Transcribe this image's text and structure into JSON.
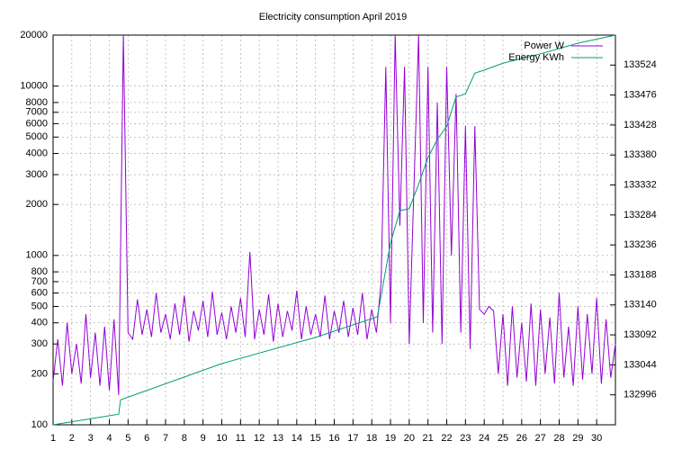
{
  "chart_data": {
    "type": "line",
    "title": "Electricity consumption April 2019",
    "log_y": true,
    "grid": true,
    "legend": "top-right",
    "xlim": [
      1,
      31
    ],
    "xticks": [
      1,
      2,
      3,
      4,
      5,
      6,
      7,
      8,
      9,
      10,
      11,
      12,
      13,
      14,
      15,
      16,
      17,
      18,
      19,
      20,
      21,
      22,
      23,
      24,
      25,
      26,
      27,
      28,
      29,
      30
    ],
    "ylim": [
      100,
      20000
    ],
    "yticks": [
      100,
      200,
      300,
      400,
      500,
      600,
      700,
      800,
      1000,
      2000,
      3000,
      4000,
      5000,
      6000,
      7000,
      8000,
      10000,
      20000
    ],
    "y2lim": [
      132948,
      133572
    ],
    "y2ticks": [
      132996,
      133044,
      133092,
      133140,
      133188,
      133236,
      133284,
      133332,
      133380,
      133428,
      133476,
      133524
    ],
    "series": [
      {
        "name": "Power W",
        "color": "#9400d3",
        "x": [
          1,
          1.25,
          1.5,
          1.75,
          2,
          2.25,
          2.5,
          2.75,
          3,
          3.25,
          3.5,
          3.75,
          4,
          4.25,
          4.5,
          4.75,
          5,
          5.25,
          5.5,
          5.75,
          6,
          6.25,
          6.5,
          6.75,
          7,
          7.25,
          7.5,
          7.75,
          8,
          8.25,
          8.5,
          8.75,
          9,
          9.25,
          9.5,
          9.75,
          10,
          10.25,
          10.5,
          10.75,
          11,
          11.25,
          11.5,
          11.75,
          12,
          12.25,
          12.5,
          12.75,
          13,
          13.25,
          13.5,
          13.75,
          14,
          14.25,
          14.5,
          14.75,
          15,
          15.25,
          15.5,
          15.75,
          16,
          16.25,
          16.5,
          16.75,
          17,
          17.25,
          17.5,
          17.75,
          18,
          18.25,
          18.5,
          18.75,
          19,
          19.25,
          19.5,
          19.75,
          20,
          20.25,
          20.5,
          20.75,
          21,
          21.25,
          21.5,
          21.75,
          22,
          22.25,
          22.5,
          22.75,
          23,
          23.25,
          23.5,
          23.75,
          24,
          24.25,
          24.5,
          24.75,
          25,
          25.25,
          25.5,
          25.75,
          26,
          26.25,
          26.5,
          26.75,
          27,
          27.25,
          27.5,
          27.75,
          28,
          28.25,
          28.5,
          28.75,
          29,
          29.25,
          29.5,
          29.75,
          30,
          30.25,
          30.5,
          30.75,
          31
        ],
        "values": [
          180,
          320,
          170,
          400,
          200,
          300,
          175,
          450,
          190,
          350,
          170,
          380,
          160,
          420,
          150,
          20000,
          350,
          320,
          550,
          340,
          480,
          330,
          600,
          350,
          450,
          320,
          520,
          340,
          580,
          310,
          470,
          360,
          540,
          330,
          610,
          340,
          460,
          320,
          500,
          350,
          560,
          330,
          1050,
          320,
          480,
          340,
          590,
          310,
          520,
          330,
          470,
          360,
          620,
          320,
          500,
          340,
          450,
          330,
          580,
          320,
          470,
          350,
          540,
          330,
          490,
          340,
          600,
          320,
          480,
          350,
          700,
          13000,
          400,
          20000,
          1500,
          13000,
          300,
          2500,
          20000,
          400,
          13000,
          350,
          8000,
          300,
          13000,
          1000,
          9000,
          350,
          5800,
          280,
          5800,
          480,
          450,
          500,
          470,
          200,
          450,
          170,
          500,
          190,
          400,
          180,
          520,
          170,
          480,
          200,
          430,
          175,
          600,
          190,
          380,
          170,
          500,
          185,
          450,
          200,
          560,
          175,
          420,
          190,
          300
        ]
      },
      {
        "name": "Energy KWh",
        "color": "#009e73",
        "axis": "y2",
        "x": [
          1,
          4.5,
          4.6,
          10,
          15,
          18.3,
          19,
          19.5,
          20,
          20.5,
          21,
          21.5,
          22,
          22.5,
          23,
          23.5,
          24,
          25,
          27,
          29,
          31
        ],
        "values": [
          132948,
          132965,
          132988,
          133046,
          133088,
          133121,
          133239,
          133291,
          133294,
          133333,
          133376,
          133405,
          133426,
          133473,
          133478,
          133511,
          133516,
          133527,
          133542,
          133559,
          133572
        ]
      }
    ]
  }
}
